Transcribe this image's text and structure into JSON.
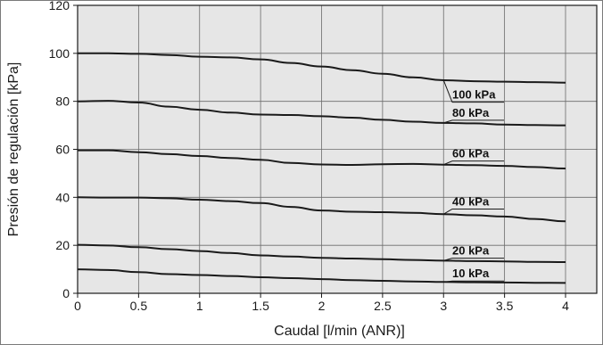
{
  "chart_data": {
    "type": "line",
    "title": "",
    "xlabel": "Caudal [l/min (ANR)]",
    "ylabel": "Presión de regulación [kPa]",
    "xlim": [
      0,
      4
    ],
    "ylim": [
      0,
      120
    ],
    "x_ticks": [
      0,
      0.5,
      1,
      1.5,
      2,
      2.5,
      3,
      3.5,
      4
    ],
    "x_tick_labels": [
      "0",
      "0.5",
      "1",
      "1.5",
      "2",
      "2.5",
      "3",
      "3.5",
      "4"
    ],
    "y_ticks": [
      0,
      20,
      40,
      60,
      80,
      100,
      120
    ],
    "y_tick_labels": [
      "0",
      "20",
      "40",
      "60",
      "80",
      "100",
      "120"
    ],
    "grid": true,
    "background_color": "#e6e6e6",
    "line_color": "#1a1a1a",
    "series": [
      {
        "name": "100 kPa",
        "x": [
          0,
          0.25,
          0.5,
          0.75,
          1,
          1.25,
          1.5,
          1.75,
          2,
          2.25,
          2.5,
          2.75,
          3,
          3.25,
          3.5,
          3.75,
          4
        ],
        "y": [
          100,
          100,
          99.8,
          99.3,
          98.6,
          98.3,
          97.5,
          96,
          94.5,
          93,
          91.5,
          90,
          88.8,
          88.4,
          88.2,
          88,
          87.8
        ]
      },
      {
        "name": "80 kPa",
        "x": [
          0,
          0.25,
          0.5,
          0.75,
          1,
          1.25,
          1.5,
          1.75,
          2,
          2.25,
          2.5,
          2.75,
          3,
          3.25,
          3.5,
          3.75,
          4
        ],
        "y": [
          80,
          80.2,
          79.5,
          77.8,
          76.5,
          75.3,
          74.5,
          74.3,
          73.8,
          73.2,
          72.3,
          71.5,
          71,
          70.8,
          70.3,
          70.1,
          70
        ]
      },
      {
        "name": "60 kPa",
        "x": [
          0,
          0.25,
          0.5,
          0.75,
          1,
          1.25,
          1.5,
          1.75,
          2,
          2.25,
          2.5,
          2.75,
          3,
          3.25,
          3.5,
          3.75,
          4
        ],
        "y": [
          59.6,
          59.6,
          58.8,
          58,
          57.2,
          56.4,
          55.6,
          54.3,
          53.7,
          53.5,
          53.8,
          53.9,
          53.6,
          53.4,
          53.1,
          52.6,
          52
        ]
      },
      {
        "name": "40 kPa",
        "x": [
          0,
          0.25,
          0.5,
          0.75,
          1,
          1.25,
          1.5,
          1.75,
          2,
          2.25,
          2.5,
          2.75,
          3,
          3.25,
          3.5,
          3.75,
          4
        ],
        "y": [
          40,
          39.9,
          39.9,
          39.6,
          39,
          38.4,
          37.6,
          36,
          34.5,
          34,
          33.8,
          33.5,
          33,
          32.5,
          32,
          31,
          30
        ]
      },
      {
        "name": "20 kPa",
        "x": [
          0,
          0.25,
          0.5,
          0.75,
          1,
          1.25,
          1.5,
          1.75,
          2,
          2.25,
          2.5,
          2.75,
          3,
          3.25,
          3.5,
          3.75,
          4
        ],
        "y": [
          20.2,
          19.9,
          19.2,
          18.4,
          17.6,
          16.8,
          15.8,
          15.3,
          14.8,
          14.5,
          14.2,
          13.9,
          13.6,
          13.4,
          13.3,
          13.1,
          13
        ]
      },
      {
        "name": "10 kPa",
        "x": [
          0,
          0.25,
          0.5,
          0.75,
          1,
          1.25,
          1.5,
          1.75,
          2,
          2.25,
          2.5,
          2.75,
          3,
          3.25,
          3.5,
          3.75,
          4
        ],
        "y": [
          10,
          9.7,
          8.8,
          8,
          7.6,
          7.2,
          6.7,
          6.3,
          5.9,
          5.5,
          5.2,
          4.9,
          4.7,
          4.6,
          4.5,
          4.4,
          4.3
        ]
      }
    ]
  }
}
